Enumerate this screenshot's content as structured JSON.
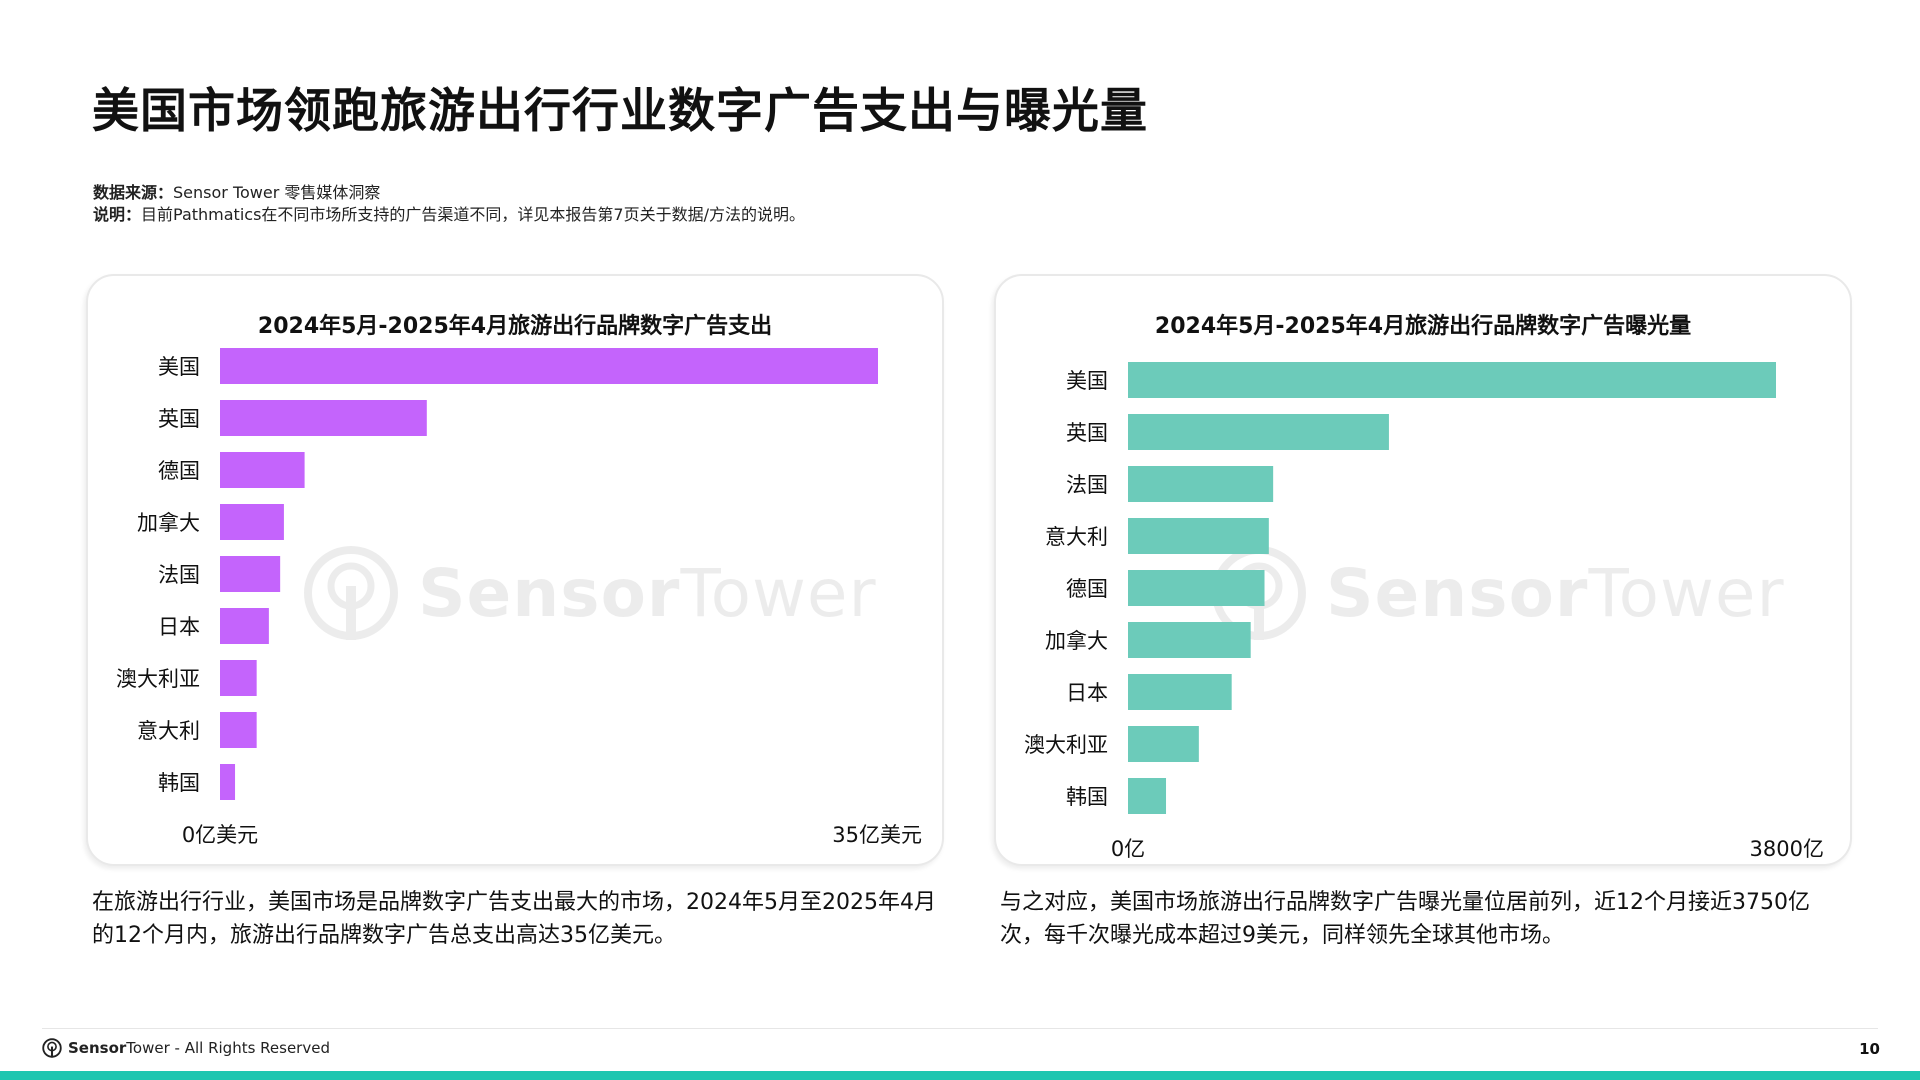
{
  "page": {
    "title": "美国市场领跑旅游出行行业数字广告支出与曝光量",
    "source_label": "数据来源：",
    "source_text": "Sensor Tower 零售媒体洞察",
    "note_label": "说明：",
    "note_text": "目前Pathmatics在不同市场所支持的广告渠道不同，详见本报告第7页关于数据/方法的说明。",
    "caption_left": "在旅游出行行业，美国市场是品牌数字广告支出最大的市场，2024年5月至2025年4月的12个月内，旅游出行品牌数字广告总支出高达35亿美元。",
    "caption_right": "与之对应，美国市场旅游出行品牌数字广告曝光量位居前列，近12个月接近3750亿次，每千次曝光成本超过9美元，同样领先全球其他市场。",
    "watermark_bold": "Sensor",
    "watermark_thin": "Tower"
  },
  "footer": {
    "brand_bold": "Sensor",
    "brand_thin": "Tower",
    "rights": " - All Rights Reserved",
    "page_number": "10"
  },
  "colors": {
    "spend_bar": "#c464fc",
    "impression_bar": "#6ccbba",
    "accent_bar": "#1ec6b0"
  },
  "chart_data": [
    {
      "type": "bar",
      "orientation": "horizontal",
      "title": "2024年5月-2025年4月旅游出行品牌数字广告支出",
      "categories": [
        "美国",
        "英国",
        "德国",
        "加拿大",
        "法国",
        "日本",
        "澳大利亚",
        "意大利",
        "韩国"
      ],
      "series": [
        {
          "values": [
            35,
            11,
            4.5,
            3.4,
            3.2,
            2.6,
            1.95,
            1.95,
            0.8
          ]
        }
      ],
      "xlim": [
        0,
        35
      ],
      "axis_min_label": "0亿美元",
      "axis_max_label": "35亿美元",
      "unit": "亿美元",
      "grid": false,
      "legend": "none"
    },
    {
      "type": "bar",
      "orientation": "horizontal",
      "title": "2024年5月-2025年4月旅游出行品牌数字广告曝光量",
      "categories": [
        "美国",
        "英国",
        "法国",
        "意大利",
        "德国",
        "加拿大",
        "日本",
        "澳大利亚",
        "韩国"
      ],
      "series": [
        {
          "values": [
            3750,
            1510,
            840,
            815,
            790,
            710,
            600,
            410,
            220
          ]
        }
      ],
      "xlim": [
        0,
        3750
      ],
      "axis_min_label": "0亿",
      "axis_max_label": "3800亿",
      "unit": "亿",
      "grid": false,
      "legend": "none"
    }
  ]
}
